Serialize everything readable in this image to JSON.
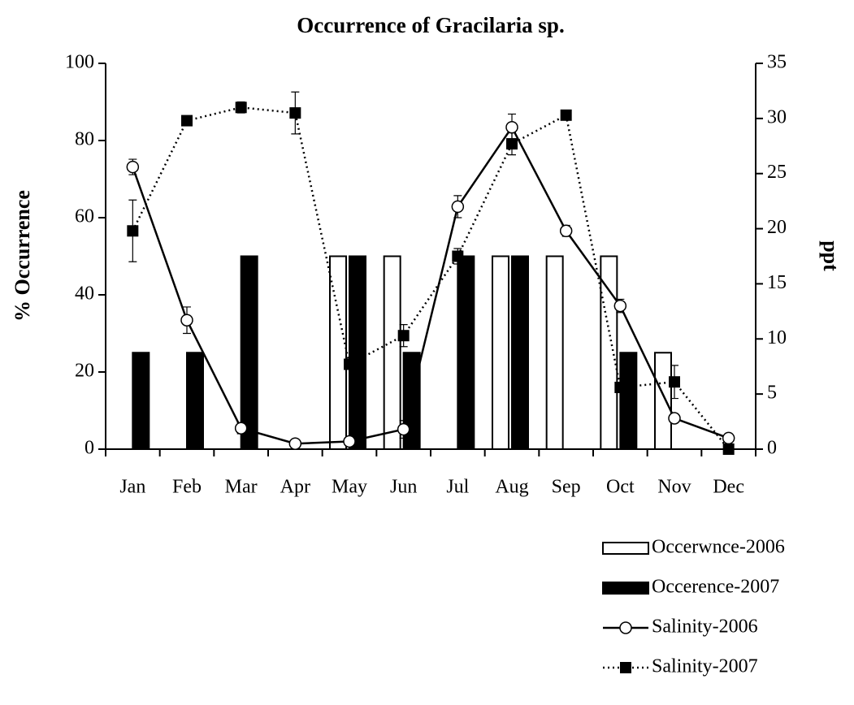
{
  "chart_data": {
    "type": "bar",
    "title": "Occurrence of Gracilaria sp.",
    "ylabel": "% Occurrence",
    "y2label": "ppt",
    "categories": [
      "Jan",
      "Feb",
      "Mar",
      "Apr",
      "May",
      "Jun",
      "Jul",
      "Aug",
      "Sep",
      "Oct",
      "Nov",
      "Dec"
    ],
    "ylim": [
      0,
      100
    ],
    "yticks": [
      0,
      20,
      40,
      60,
      80,
      100
    ],
    "y2lim": [
      0,
      35
    ],
    "y2ticks": [
      0,
      5,
      10,
      15,
      20,
      25,
      30,
      35
    ],
    "grid": false,
    "legend": "bottom-right",
    "series": [
      {
        "name": "Occerwnce-2006",
        "type": "bar",
        "color": "#ffffff",
        "values": [
          0,
          0,
          0,
          0,
          50,
          50,
          0,
          50,
          50,
          50,
          25,
          0
        ]
      },
      {
        "name": "Occerence-2007",
        "type": "bar",
        "color": "#000000",
        "values": [
          25,
          25,
          50,
          0,
          50,
          25,
          50,
          50,
          0,
          25,
          0,
          0
        ]
      },
      {
        "name": "Salinity-2006",
        "type": "line",
        "axis": "y2",
        "color": "#000000",
        "marker": "circle",
        "line_style": "solid",
        "values": [
          25.6,
          11.7,
          1.9,
          0.5,
          0.7,
          1.8,
          22.0,
          29.2,
          19.8,
          13.0,
          2.8,
          1.0
        ],
        "errors": [
          0.7,
          1.2,
          0.5,
          0.2,
          0.2,
          0.8,
          1.0,
          1.2,
          0.5,
          0.6,
          0.3,
          0.3
        ]
      },
      {
        "name": "Salinity-2007",
        "type": "line",
        "axis": "y2",
        "color": "#000000",
        "marker": "square",
        "line_style": "dotted",
        "values": [
          19.8,
          29.8,
          31.0,
          30.5,
          7.7,
          10.3,
          17.5,
          27.7,
          30.3,
          5.6,
          6.1,
          0
        ],
        "errors": [
          2.8,
          0.3,
          0.5,
          1.9,
          0.4,
          1.0,
          0.7,
          1.0,
          0.3,
          0.3,
          1.5,
          0.2
        ]
      }
    ]
  }
}
